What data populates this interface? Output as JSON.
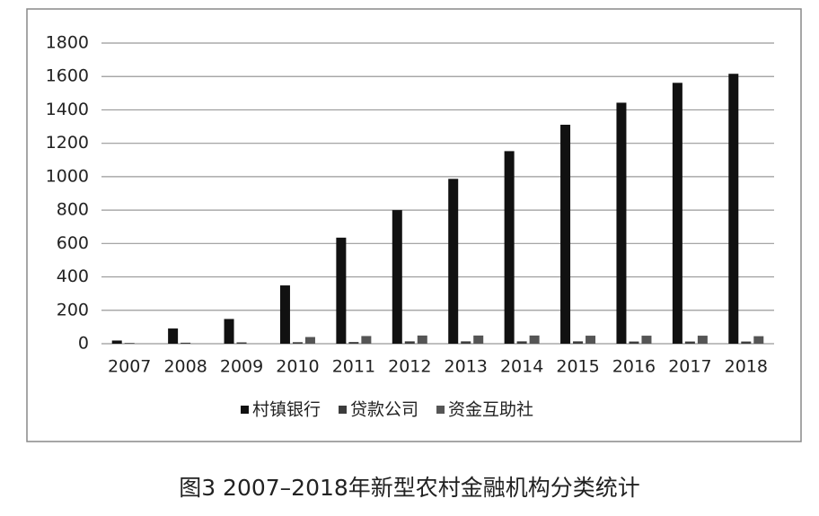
{
  "chart_data": {
    "type": "bar",
    "title": "图3 2007–2018年新型农村金融机构分类统计",
    "categories": [
      "2007",
      "2008",
      "2009",
      "2010",
      "2011",
      "2012",
      "2013",
      "2014",
      "2015",
      "2016",
      "2017",
      "2018"
    ],
    "series": [
      {
        "name": "村镇银行",
        "color": "#111111",
        "values": [
          19,
          91,
          148,
          349,
          635,
          800,
          987,
          1153,
          1311,
          1443,
          1562,
          1616
        ]
      },
      {
        "name": "贷款公司",
        "color": "#3c3c3c",
        "values": [
          4,
          6,
          8,
          9,
          10,
          14,
          14,
          14,
          14,
          13,
          13,
          13
        ]
      },
      {
        "name": "资金互助社",
        "color": "#555555",
        "values": [
          0,
          0,
          0,
          40,
          46,
          49,
          49,
          49,
          48,
          48,
          48,
          45
        ]
      }
    ],
    "ylim": [
      0,
      1800
    ],
    "yticks": [
      0,
      200,
      400,
      600,
      800,
      1000,
      1200,
      1400,
      1600,
      1800
    ],
    "grid": true
  }
}
